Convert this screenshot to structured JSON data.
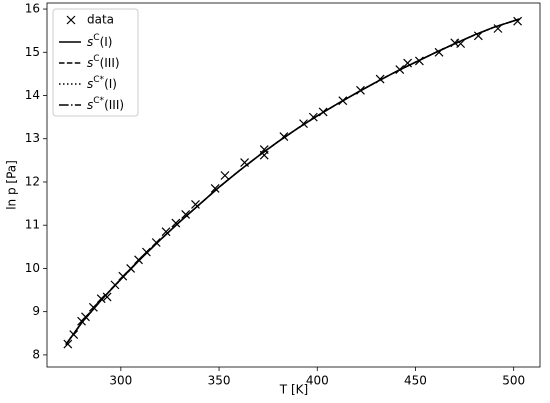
{
  "chart_data": {
    "type": "line",
    "xlabel": "T [K]",
    "ylabel": "ln p [Pa]",
    "xlim": [
      262.4,
      513.4
    ],
    "ylim": [
      7.72,
      16.14
    ],
    "xticks": [
      300,
      350,
      400,
      450,
      500
    ],
    "yticks": [
      8,
      9,
      10,
      11,
      12,
      13,
      14,
      15,
      16
    ],
    "legend": "upper left",
    "scatter": {
      "name": "data",
      "color": "#000000",
      "x": [
        273,
        276,
        280,
        282,
        286,
        290,
        293,
        297,
        301,
        305,
        309,
        313,
        318,
        323,
        328,
        333,
        338,
        348,
        353,
        363,
        373,
        373,
        383,
        393,
        398,
        403,
        413,
        422,
        432,
        442,
        446,
        452,
        462,
        470,
        473,
        482,
        492,
        502
      ],
      "values": [
        8.25,
        8.47,
        8.78,
        8.88,
        9.1,
        9.3,
        9.34,
        9.62,
        9.82,
        10.0,
        10.2,
        10.38,
        10.6,
        10.85,
        11.05,
        11.25,
        11.48,
        11.85,
        12.15,
        12.45,
        12.75,
        12.62,
        13.05,
        13.35,
        13.5,
        13.62,
        13.88,
        14.12,
        14.38,
        14.6,
        14.75,
        14.8,
        15.0,
        15.22,
        15.2,
        15.38,
        15.55,
        15.72
      ]
    },
    "x": [
      272,
      280,
      290,
      300,
      310,
      320,
      330,
      340,
      350,
      360,
      370,
      380,
      390,
      400,
      410,
      420,
      430,
      440,
      450,
      460,
      470,
      480,
      490,
      503
    ],
    "series": [
      {
        "name": [
          "s",
          "C",
          "(I)"
        ],
        "color": "#000000",
        "dash": "solid",
        "values": [
          8.24,
          8.74,
          9.27,
          9.75,
          10.22,
          10.66,
          11.08,
          11.48,
          11.88,
          12.25,
          12.6,
          12.93,
          13.24,
          13.53,
          13.8,
          14.06,
          14.31,
          14.55,
          14.77,
          14.99,
          15.2,
          15.4,
          15.58,
          15.77
        ]
      },
      {
        "name": [
          "s",
          "C",
          "(III)"
        ],
        "color": "#000000",
        "dash": "dashed",
        "values": [
          8.24,
          8.74,
          9.27,
          9.75,
          10.22,
          10.66,
          11.08,
          11.48,
          11.88,
          12.25,
          12.6,
          12.93,
          13.24,
          13.53,
          13.8,
          14.06,
          14.31,
          14.55,
          14.77,
          14.99,
          15.2,
          15.4,
          15.58,
          15.77
        ]
      },
      {
        "name": [
          "s",
          "C*",
          "(I)"
        ],
        "color": "#000000",
        "dash": "dotted",
        "values": [
          8.24,
          8.74,
          9.27,
          9.75,
          10.22,
          10.66,
          11.08,
          11.48,
          11.88,
          12.25,
          12.6,
          12.93,
          13.24,
          13.53,
          13.8,
          14.06,
          14.31,
          14.55,
          14.77,
          14.99,
          15.2,
          15.4,
          15.58,
          15.77
        ]
      },
      {
        "name": [
          "s",
          "C*",
          "(III)"
        ],
        "color": "#000000",
        "dash": "dashdot",
        "values": [
          8.24,
          8.74,
          9.27,
          9.75,
          10.22,
          10.66,
          11.08,
          11.48,
          11.88,
          12.25,
          12.6,
          12.93,
          13.24,
          13.53,
          13.8,
          14.06,
          14.31,
          14.55,
          14.77,
          14.99,
          15.2,
          15.4,
          15.58,
          15.77
        ]
      }
    ]
  }
}
